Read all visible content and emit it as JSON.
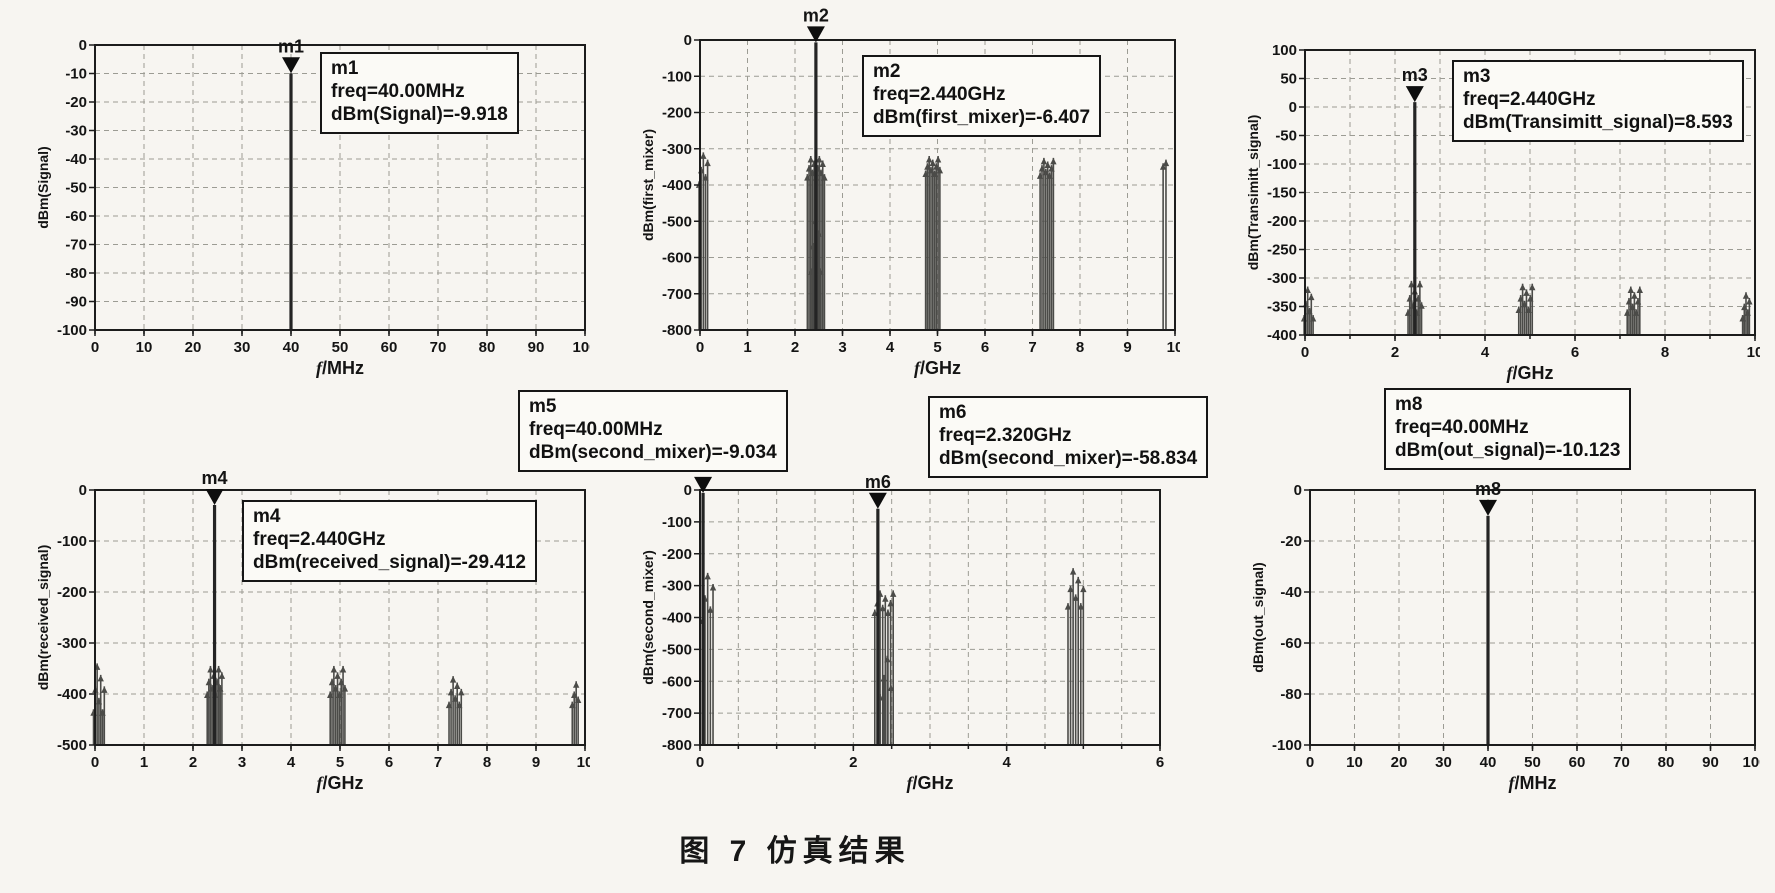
{
  "caption": "图 7  仿真结果",
  "chart_data": [
    {
      "type": "bar",
      "name": "signal_spectrum",
      "ylabel": "dBm(Signal)",
      "xlabel": "f/MHz",
      "xlim": [
        0,
        100
      ],
      "ylim": [
        -100,
        0
      ],
      "xticks": [
        0,
        10,
        20,
        30,
        40,
        50,
        60,
        70,
        80,
        90,
        100
      ],
      "yticks": [
        0,
        -10,
        -20,
        -30,
        -40,
        -50,
        -60,
        -70,
        -80,
        -90,
        -100
      ],
      "grid": true,
      "spikes": [
        {
          "x": 40,
          "top": -9.918
        }
      ],
      "clusters": [],
      "markers": [
        {
          "label": "m1",
          "x": 40,
          "y": -9.918
        }
      ],
      "annotation_boxes": [
        {
          "lines": [
            "m1",
            "freq=40.00MHz",
            "dBm(Signal)=-9.918"
          ]
        }
      ]
    },
    {
      "type": "bar",
      "name": "first_mixer_spectrum",
      "ylabel": "dBm(first_mixer)",
      "xlabel": "f/GHz",
      "xlim": [
        0,
        10
      ],
      "ylim": [
        -800,
        0
      ],
      "xticks": [
        0,
        1,
        2,
        3,
        4,
        5,
        6,
        7,
        8,
        9,
        10
      ],
      "yticks": [
        0,
        -100,
        -200,
        -300,
        -400,
        -500,
        -600,
        -700,
        -800
      ],
      "grid": true,
      "spikes": [
        {
          "x": 2.44,
          "top": -6.407
        }
      ],
      "clusters": [
        {
          "c": 0.07,
          "span": 0.18,
          "n": 5,
          "top": -350,
          "var": 40
        },
        {
          "c": 2.44,
          "span": 0.36,
          "n": 11,
          "top": -345,
          "var": 25
        },
        {
          "c": 2.44,
          "span": 0.2,
          "n": 6,
          "top": -560,
          "var": 70
        },
        {
          "c": 4.9,
          "span": 0.3,
          "n": 9,
          "top": -340,
          "var": 20
        },
        {
          "c": 7.3,
          "span": 0.28,
          "n": 8,
          "top": -345,
          "var": 20
        },
        {
          "c": 9.78,
          "span": 0.06,
          "n": 2,
          "top": -330,
          "var": 10
        }
      ],
      "markers": [
        {
          "label": "m2",
          "x": 2.44,
          "y": -6.407
        }
      ],
      "annotation_boxes": [
        {
          "lines": [
            "m2",
            "freq=2.440GHz",
            "dBm(first_mixer)=-6.407"
          ]
        }
      ]
    },
    {
      "type": "bar",
      "name": "transmitt_signal_spectrum",
      "ylabel": "dBm(Transimitt_signal)",
      "xlabel": "f/GHz",
      "xlim": [
        0,
        10
      ],
      "ylim": [
        -400,
        100
      ],
      "xticks": [
        0,
        2,
        4,
        6,
        8,
        10
      ],
      "xgrid": [
        0,
        1,
        2,
        3,
        4,
        5,
        6,
        7,
        8,
        9,
        10
      ],
      "yticks": [
        100,
        50,
        0,
        -50,
        -100,
        -150,
        -200,
        -250,
        -300,
        -350,
        -400
      ],
      "grid": true,
      "spikes": [
        {
          "x": 2.44,
          "top": 8.593
        }
      ],
      "clusters": [
        {
          "c": 0.08,
          "span": 0.2,
          "n": 6,
          "top": -340,
          "var": 25
        },
        {
          "c": 2.44,
          "span": 0.3,
          "n": 9,
          "top": -330,
          "var": 25
        },
        {
          "c": 4.9,
          "span": 0.3,
          "n": 8,
          "top": -330,
          "var": 20
        },
        {
          "c": 7.3,
          "span": 0.28,
          "n": 8,
          "top": -335,
          "var": 20
        },
        {
          "c": 9.8,
          "span": 0.15,
          "n": 5,
          "top": -345,
          "var": 20
        }
      ],
      "markers": [
        {
          "label": "m3",
          "x": 2.44,
          "y": 8.593
        }
      ],
      "annotation_boxes": [
        {
          "lines": [
            "m3",
            "freq=2.440GHz",
            "dBm(Transimitt_signal)=8.593"
          ]
        }
      ]
    },
    {
      "type": "bar",
      "name": "received_signal_spectrum",
      "ylabel": "dBm(received_signal)",
      "xlabel": "f/GHz",
      "xlim": [
        0,
        10
      ],
      "ylim": [
        -500,
        0
      ],
      "xticks": [
        0,
        1,
        2,
        3,
        4,
        5,
        6,
        7,
        8,
        9,
        10
      ],
      "yticks": [
        0,
        -100,
        -200,
        -300,
        -400,
        -500
      ],
      "grid": true,
      "spikes": [
        {
          "x": 2.44,
          "top": -29.412
        }
      ],
      "clusters": [
        {
          "c": 0.08,
          "span": 0.22,
          "n": 7,
          "top": -385,
          "var": 45
        },
        {
          "c": 2.44,
          "span": 0.3,
          "n": 10,
          "top": -370,
          "var": 25
        },
        {
          "c": 4.95,
          "span": 0.3,
          "n": 9,
          "top": -370,
          "var": 25
        },
        {
          "c": 7.35,
          "span": 0.25,
          "n": 7,
          "top": -390,
          "var": 25
        },
        {
          "c": 9.8,
          "span": 0.12,
          "n": 4,
          "top": -395,
          "var": 20
        }
      ],
      "markers": [
        {
          "label": "m4",
          "x": 2.44,
          "y": -29.412
        }
      ],
      "annotation_boxes": [
        {
          "lines": [
            "m4",
            "freq=2.440GHz",
            "dBm(received_signal)=-29.412"
          ]
        }
      ]
    },
    {
      "type": "bar",
      "name": "second_mixer_spectrum",
      "ylabel": "dBm(second_mixer)",
      "xlabel": "f/GHz",
      "xlim": [
        0,
        6
      ],
      "ylim": [
        -800,
        0
      ],
      "xticks": [
        0,
        2,
        4,
        6
      ],
      "xgrid": [
        0,
        0.5,
        1,
        1.5,
        2,
        2.5,
        3,
        3.5,
        4,
        4.5,
        5,
        5.5,
        6
      ],
      "yticks": [
        0,
        -100,
        -200,
        -300,
        -400,
        -500,
        -600,
        -700,
        -800
      ],
      "grid": true,
      "spikes": [
        {
          "x": 0.04,
          "top": -9.034
        },
        {
          "x": 2.32,
          "top": -58.834
        }
      ],
      "clusters": [
        {
          "c": 0.1,
          "span": 0.14,
          "n": 5,
          "top": -330,
          "var": 70
        },
        {
          "c": 2.4,
          "span": 0.24,
          "n": 8,
          "top": -345,
          "var": 30
        },
        {
          "c": 2.42,
          "span": 0.14,
          "n": 4,
          "top": -580,
          "var": 60
        },
        {
          "c": 4.9,
          "span": 0.2,
          "n": 7,
          "top": -300,
          "var": 55
        }
      ],
      "markers": [
        {
          "label": "m5",
          "x": 0.04,
          "y": -9.034
        },
        {
          "label": "m6",
          "x": 2.32,
          "y": -58.834
        }
      ],
      "annotation_boxes": [
        {
          "lines": [
            "m5",
            "freq=40.00MHz",
            "dBm(second_mixer)=-9.034"
          ]
        },
        {
          "lines": [
            "m6",
            "freq=2.320GHz",
            "dBm(second_mixer)=-58.834"
          ]
        }
      ]
    },
    {
      "type": "bar",
      "name": "out_signal_spectrum",
      "ylabel": "dBm(out_signal)",
      "xlabel": "f/MHz",
      "xlim": [
        0,
        100
      ],
      "ylim": [
        -100,
        0
      ],
      "xticks": [
        0,
        10,
        20,
        30,
        40,
        50,
        60,
        70,
        80,
        90,
        100
      ],
      "yticks": [
        0,
        -20,
        -40,
        -60,
        -80,
        -100
      ],
      "grid": true,
      "spikes": [
        {
          "x": 40,
          "top": -10.123
        }
      ],
      "clusters": [],
      "markers": [
        {
          "label": "m8",
          "x": 40,
          "y": -10.123
        }
      ],
      "annotation_boxes": [
        {
          "lines": [
            "m8",
            "freq=40.00MHz",
            "dBm(out_signal)=-10.123"
          ]
        }
      ]
    }
  ]
}
